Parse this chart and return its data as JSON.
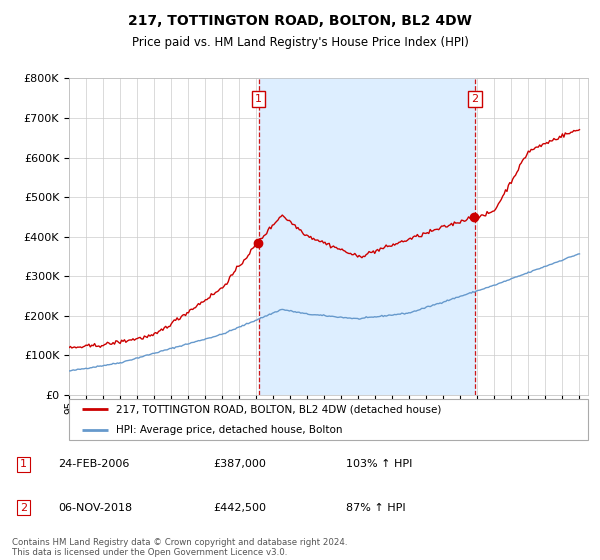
{
  "title": "217, TOTTINGTON ROAD, BOLTON, BL2 4DW",
  "subtitle": "Price paid vs. HM Land Registry's House Price Index (HPI)",
  "legend_line1": "217, TOTTINGTON ROAD, BOLTON, BL2 4DW (detached house)",
  "legend_line2": "HPI: Average price, detached house, Bolton",
  "transaction1_date": "24-FEB-2006",
  "transaction1_price": "£387,000",
  "transaction1_hpi": "103% ↑ HPI",
  "transaction2_date": "06-NOV-2018",
  "transaction2_price": "£442,500",
  "transaction2_hpi": "87% ↑ HPI",
  "footnote": "Contains HM Land Registry data © Crown copyright and database right 2024.\nThis data is licensed under the Open Government Licence v3.0.",
  "red_color": "#cc0000",
  "blue_color": "#6699cc",
  "shade_color": "#ddeeff",
  "background_color": "#ffffff",
  "grid_color": "#cccccc",
  "transaction1_year": 2006.14,
  "transaction2_year": 2018.85,
  "transaction1_price_val": 387000,
  "transaction2_price_val": 442500,
  "ylim_max": 800000,
  "ylim_min": 0,
  "xmin": 1995,
  "xmax": 2025.5
}
